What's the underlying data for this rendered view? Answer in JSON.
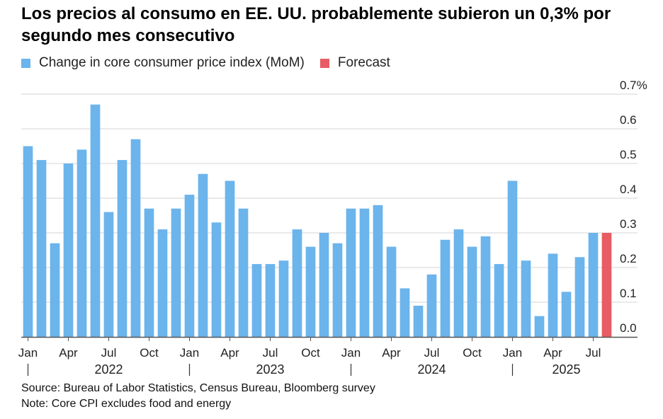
{
  "title": "Los precios al consumo en EE. UU. probablemente subieron un 0,3% por segundo mes consecutivo",
  "source": "Source: Bureau of Labor Statistics, Census Bureau, Bloomberg survey",
  "note": "Note: Core CPI excludes food and energy",
  "colors": {
    "actual": "#6cb4ec",
    "forecast": "#e85c64",
    "grid": "#d6d6d6",
    "axis": "#555555"
  },
  "chart_data": {
    "type": "bar",
    "title": "Los precios al consumo en EE. UU. probablemente subieron un 0,3% por segundo mes consecutivo",
    "xlabel": "",
    "ylabel": "",
    "ylim": [
      0,
      0.7
    ],
    "y_ticks": [
      "0.0",
      "0.1",
      "0.2",
      "0.3",
      "0.4",
      "0.5",
      "0.6",
      "0.7%"
    ],
    "y_tick_values": [
      0,
      0.1,
      0.2,
      0.3,
      0.4,
      0.5,
      0.6,
      0.7
    ],
    "y_axis_side": "right",
    "grid": true,
    "legend_position": "top-left",
    "x_tick_labels": [
      {
        "label": "Jan",
        "index": 0
      },
      {
        "label": "Apr",
        "index": 3
      },
      {
        "label": "Jul",
        "index": 6
      },
      {
        "label": "Oct",
        "index": 9
      },
      {
        "label": "Jan",
        "index": 12
      },
      {
        "label": "Apr",
        "index": 15
      },
      {
        "label": "Jul",
        "index": 18
      },
      {
        "label": "Oct",
        "index": 21
      },
      {
        "label": "Jan",
        "index": 24
      },
      {
        "label": "Apr",
        "index": 27
      },
      {
        "label": "Jul",
        "index": 30
      },
      {
        "label": "Oct",
        "index": 33
      },
      {
        "label": "Jan",
        "index": 36
      },
      {
        "label": "Apr",
        "index": 39
      },
      {
        "label": "Jul",
        "index": 42
      }
    ],
    "year_labels": [
      {
        "label": "2022",
        "start": 0,
        "end": 11
      },
      {
        "label": "2023",
        "start": 12,
        "end": 23
      },
      {
        "label": "2024",
        "start": 24,
        "end": 35
      },
      {
        "label": "2025",
        "start": 36,
        "end": 43
      }
    ],
    "series": [
      {
        "name": "Change in core consumer price index (MoM)",
        "color": "#6cb4ec",
        "values": [
          0.55,
          0.51,
          0.27,
          0.5,
          0.54,
          0.67,
          0.36,
          0.51,
          0.57,
          0.37,
          0.31,
          0.37,
          0.41,
          0.47,
          0.33,
          0.45,
          0.37,
          0.21,
          0.21,
          0.22,
          0.31,
          0.26,
          0.3,
          0.27,
          0.37,
          0.37,
          0.38,
          0.26,
          0.14,
          0.09,
          0.18,
          0.28,
          0.31,
          0.26,
          0.29,
          0.21,
          0.45,
          0.22,
          0.06,
          0.24,
          0.13,
          0.23,
          0.3,
          null
        ]
      },
      {
        "name": "Forecast",
        "color": "#e85c64",
        "values": [
          null,
          null,
          null,
          null,
          null,
          null,
          null,
          null,
          null,
          null,
          null,
          null,
          null,
          null,
          null,
          null,
          null,
          null,
          null,
          null,
          null,
          null,
          null,
          null,
          null,
          null,
          null,
          null,
          null,
          null,
          null,
          null,
          null,
          null,
          null,
          null,
          null,
          null,
          null,
          null,
          null,
          null,
          null,
          0.3
        ]
      }
    ]
  }
}
